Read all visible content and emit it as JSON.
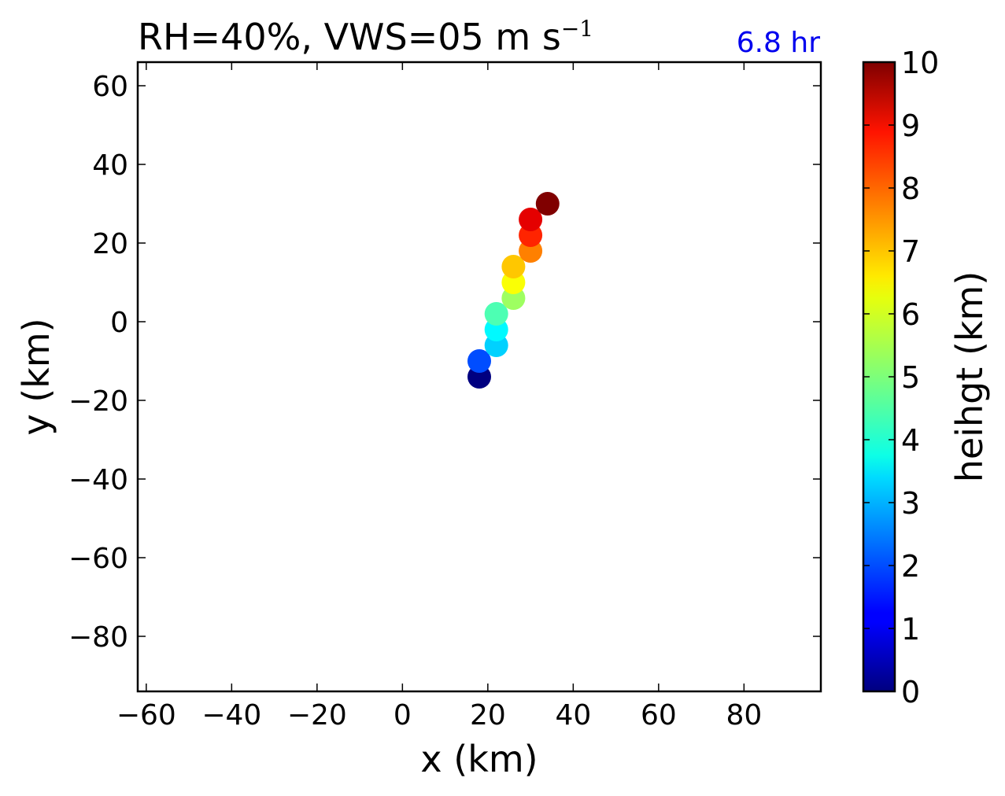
{
  "chart_data": {
    "type": "scatter",
    "title": "RH=40%, VWS=05 m s",
    "title_superscript": "−1",
    "annotation": "6.8 hr",
    "annotation_color": "#0000ee",
    "xlabel": "x (km)",
    "ylabel": "y (km)",
    "xlim": [
      -62,
      98
    ],
    "ylim": [
      -94,
      66
    ],
    "xticks": [
      -60,
      -40,
      -20,
      0,
      20,
      40,
      60,
      80
    ],
    "xtick_labels": [
      "−60",
      "−40",
      "−20",
      "0",
      "20",
      "40",
      "60",
      "80"
    ],
    "yticks": [
      60,
      40,
      20,
      0,
      -20,
      -40,
      -60,
      -80
    ],
    "ytick_labels": [
      "60",
      "40",
      "20",
      "0",
      "−20",
      "−40",
      "−60",
      "−80"
    ],
    "grid": false,
    "colorbar": {
      "label": "heihgt (km)",
      "colormap": "jet",
      "range": [
        0,
        10
      ],
      "ticks": [
        "0",
        "1",
        "2",
        "3",
        "4",
        "5",
        "6",
        "7",
        "8",
        "9",
        "10"
      ]
    },
    "points": [
      {
        "x": 18,
        "y": -14,
        "height": 0
      },
      {
        "x": 18,
        "y": -10,
        "height": 2
      },
      {
        "x": 22,
        "y": -6,
        "height": 3.3
      },
      {
        "x": 22,
        "y": -2,
        "height": 3.7
      },
      {
        "x": 22,
        "y": 2,
        "height": 4.5
      },
      {
        "x": 26,
        "y": 6,
        "height": 5.3
      },
      {
        "x": 26,
        "y": 10,
        "height": 6.2
      },
      {
        "x": 26,
        "y": 14,
        "height": 6.8
      },
      {
        "x": 30,
        "y": 18,
        "height": 7.5
      },
      {
        "x": 30,
        "y": 22,
        "height": 8.4
      },
      {
        "x": 30,
        "y": 26,
        "height": 9.0
      },
      {
        "x": 34,
        "y": 30,
        "height": 10
      }
    ]
  }
}
